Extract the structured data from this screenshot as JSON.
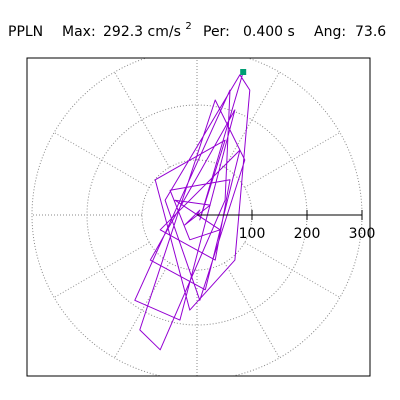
{
  "chart_data": {
    "type": "orbit",
    "title_parts": {
      "station": "PPLN",
      "max_label": "Max:",
      "max": "292.3 cm/s",
      "max_exp": "2",
      "per_label": "Per:",
      "per": "0.400 s",
      "ang_label": "Ang:",
      "ang": "73.6"
    },
    "rlim": [
      0,
      300
    ],
    "rticks": [
      100,
      200,
      300
    ],
    "spoke_step_deg": 30,
    "grid": true,
    "color": "#9400d3",
    "marker_color": "#009e73",
    "x": [
      0,
      5,
      -22,
      24,
      -40,
      42,
      -13,
      -49,
      60,
      33,
      -67,
      78,
      15,
      -85,
      69,
      -31,
      -113,
      60,
      51,
      -67,
      -104,
      33,
      87,
      5,
      -58,
      78,
      96,
      69,
      -13,
      -76,
      51,
      5,
      84
    ],
    "values": [
      0,
      9,
      -18,
      18,
      27,
      -27,
      -45,
      45,
      64,
      -82,
      -27,
      118,
      -136,
      -82,
      191,
      -191,
      -155,
      227,
      27,
      -245,
      -209,
      209,
      100,
      -155,
      27,
      255,
      227,
      -82,
      -173,
      64,
      136,
      -9,
      260
    ]
  }
}
